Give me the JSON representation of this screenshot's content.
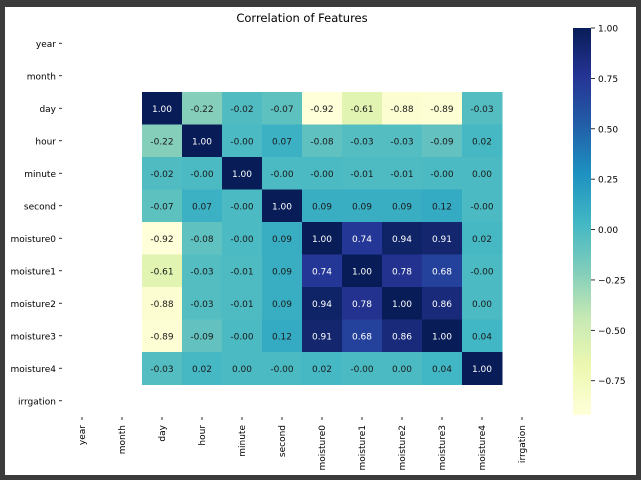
{
  "chart_data": {
    "type": "heatmap",
    "title": "Correlation of Features",
    "row_labels": [
      "year",
      "month",
      "day",
      "hour",
      "minute",
      "second",
      "moisture0",
      "moisture1",
      "moisture2",
      "moisture3",
      "moisture4",
      "irrgation"
    ],
    "col_labels": [
      "year",
      "month",
      "day",
      "hour",
      "minute",
      "second",
      "moisture0",
      "moisture1",
      "moisture2",
      "moisture3",
      "moisture4",
      "irrgation"
    ],
    "values": [
      [
        null,
        null,
        null,
        null,
        null,
        null,
        null,
        null,
        null,
        null,
        null,
        null
      ],
      [
        null,
        null,
        null,
        null,
        null,
        null,
        null,
        null,
        null,
        null,
        null,
        null
      ],
      [
        null,
        null,
        1.0,
        -0.22,
        -0.02,
        -0.07,
        -0.92,
        -0.61,
        -0.88,
        -0.89,
        -0.03,
        null
      ],
      [
        null,
        null,
        -0.22,
        1.0,
        -0.0,
        0.07,
        -0.08,
        -0.03,
        -0.03,
        -0.09,
        0.02,
        null
      ],
      [
        null,
        null,
        -0.02,
        -0.0,
        1.0,
        -0.0,
        -0.0,
        -0.01,
        -0.01,
        -0.0,
        0.0,
        null
      ],
      [
        null,
        null,
        -0.07,
        0.07,
        -0.0,
        1.0,
        0.09,
        0.09,
        0.09,
        0.12,
        -0.0,
        null
      ],
      [
        null,
        null,
        -0.92,
        -0.08,
        -0.0,
        0.09,
        1.0,
        0.74,
        0.94,
        0.91,
        0.02,
        null
      ],
      [
        null,
        null,
        -0.61,
        -0.03,
        -0.01,
        0.09,
        0.74,
        1.0,
        0.78,
        0.68,
        -0.0,
        null
      ],
      [
        null,
        null,
        -0.88,
        -0.03,
        -0.01,
        0.09,
        0.94,
        0.78,
        1.0,
        0.86,
        0.0,
        null
      ],
      [
        null,
        null,
        -0.89,
        -0.09,
        -0.0,
        0.12,
        0.91,
        0.68,
        0.86,
        1.0,
        0.04,
        null
      ],
      [
        null,
        null,
        -0.03,
        0.02,
        0.0,
        -0.0,
        0.02,
        -0.0,
        0.0,
        0.04,
        1.0,
        null
      ],
      [
        null,
        null,
        null,
        null,
        null,
        null,
        null,
        null,
        null,
        null,
        null,
        null
      ]
    ],
    "display": [
      [
        null,
        null,
        null,
        null,
        null,
        null,
        null,
        null,
        null,
        null,
        null,
        null
      ],
      [
        null,
        null,
        null,
        null,
        null,
        null,
        null,
        null,
        null,
        null,
        null,
        null
      ],
      [
        null,
        null,
        "1.00",
        "-0.22",
        "-0.02",
        "-0.07",
        "-0.92",
        "-0.61",
        "-0.88",
        "-0.89",
        "-0.03",
        null
      ],
      [
        null,
        null,
        "-0.22",
        "1.00",
        "-0.00",
        "0.07",
        "-0.08",
        "-0.03",
        "-0.03",
        "-0.09",
        "0.02",
        null
      ],
      [
        null,
        null,
        "-0.02",
        "-0.00",
        "1.00",
        "-0.00",
        "-0.00",
        "-0.01",
        "-0.01",
        "-0.00",
        "0.00",
        null
      ],
      [
        null,
        null,
        "-0.07",
        "0.07",
        "-0.00",
        "1.00",
        "0.09",
        "0.09",
        "0.09",
        "0.12",
        "-0.00",
        null
      ],
      [
        null,
        null,
        "-0.92",
        "-0.08",
        "-0.00",
        "0.09",
        "1.00",
        "0.74",
        "0.94",
        "0.91",
        "0.02",
        null
      ],
      [
        null,
        null,
        "-0.61",
        "-0.03",
        "-0.01",
        "0.09",
        "0.74",
        "1.00",
        "0.78",
        "0.68",
        "-0.00",
        null
      ],
      [
        null,
        null,
        "-0.88",
        "-0.03",
        "-0.01",
        "0.09",
        "0.94",
        "0.78",
        "1.00",
        "0.86",
        "0.00",
        null
      ],
      [
        null,
        null,
        "-0.89",
        "-0.09",
        "-0.00",
        "0.12",
        "0.91",
        "0.68",
        "0.86",
        "1.00",
        "0.04",
        null
      ],
      [
        null,
        null,
        "-0.03",
        "0.02",
        "0.00",
        "-0.00",
        "0.02",
        "-0.00",
        "0.00",
        "0.04",
        "1.00",
        null
      ],
      [
        null,
        null,
        null,
        null,
        null,
        null,
        null,
        null,
        null,
        null,
        null,
        null
      ]
    ],
    "colorbar": {
      "range": [
        -0.92,
        1.0
      ],
      "ticks": [
        1.0,
        0.75,
        0.5,
        0.25,
        0.0,
        -0.25,
        -0.5,
        -0.75
      ],
      "tick_labels": [
        "1.00",
        "0.75",
        "0.50",
        "0.25",
        "0.00",
        "−0.25",
        "−0.50",
        "−0.75"
      ],
      "colormap": "YlGnBu"
    },
    "grid": false,
    "legend": "colorbar-right"
  }
}
